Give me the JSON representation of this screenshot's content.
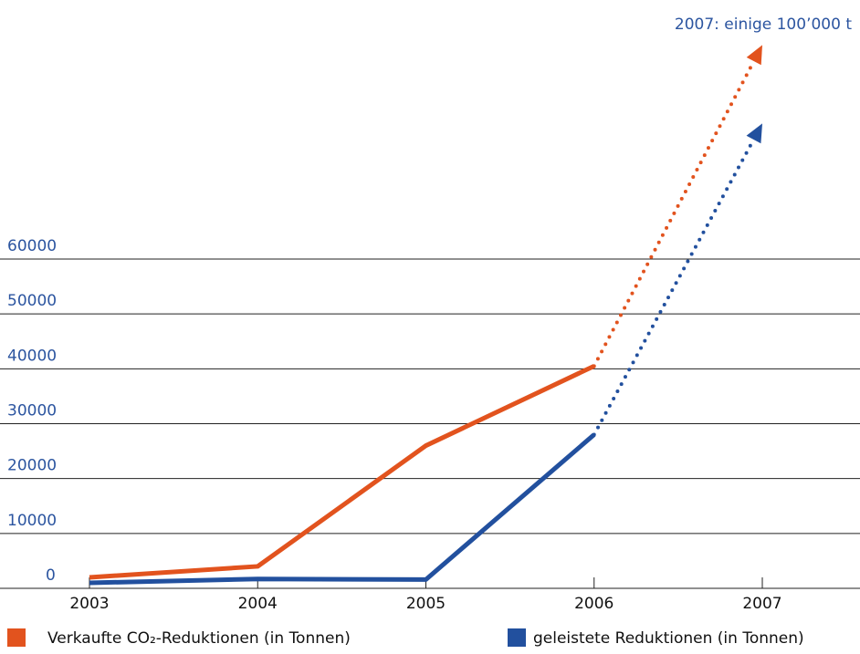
{
  "chart_data": {
    "type": "line",
    "annotation": "2007: einige 100’000 t",
    "categories": [
      "2003",
      "2004",
      "2005",
      "2006",
      "2007"
    ],
    "series": [
      {
        "name": "Verkaufte CO₂-Reduktionen (in Tonnen)",
        "color": "#e2531e",
        "values": [
          2000,
          4000,
          26000,
          40500,
          99000
        ],
        "projected": true
      },
      {
        "name": "geleistete Reduktionen (in Tonnen)",
        "color": "#22509e",
        "values": [
          1000,
          1700,
          1600,
          28000,
          84700
        ],
        "projected": true
      }
    ],
    "ylim": [
      0,
      60000
    ],
    "yticks": [
      0,
      10000,
      20000,
      30000,
      40000,
      50000,
      60000
    ],
    "grid": true
  }
}
